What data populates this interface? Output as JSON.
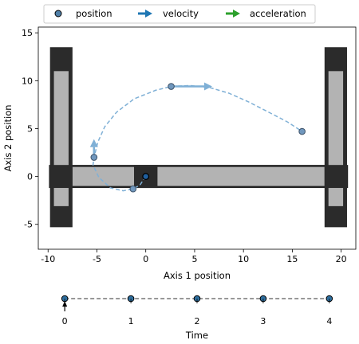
{
  "legend": {
    "items": [
      {
        "label": "position",
        "marker": "circle",
        "color": "#4f7fa8"
      },
      {
        "label": "velocity",
        "marker": "arrow",
        "color": "#1f77b4"
      },
      {
        "label": "acceleration",
        "marker": "arrow",
        "color": "#2ca02c"
      }
    ]
  },
  "chart_data": [
    {
      "type": "scatter",
      "title": "",
      "xlabel": "Axis 1 position",
      "ylabel": "Axis 2 position",
      "xlim": [
        -11,
        21.5
      ],
      "ylim": [
        -7.6,
        15.6
      ],
      "xticks": [
        -10,
        -5,
        0,
        5,
        10,
        15,
        20
      ],
      "yticks": [
        -5,
        0,
        5,
        10,
        15
      ],
      "grid": false,
      "legend_position": "top",
      "series": [
        {
          "name": "position",
          "x": [
            -5.3,
            -1.3,
            0,
            2.6,
            16
          ],
          "y": [
            2,
            -1.3,
            0,
            9.4,
            4.7
          ]
        }
      ],
      "trajectory": {
        "x": [
          0,
          -0.6,
          -1.3,
          -2.3,
          -3.6,
          -4.8,
          -5.4,
          -5.3,
          -4.9,
          -4.2,
          -3.0,
          -1.2,
          1.0,
          2.6,
          4.5,
          6.5,
          8.5,
          10.5,
          12.6,
          14.5,
          16.0
        ],
        "y": [
          0,
          -0.9,
          -1.3,
          -1.5,
          -1.2,
          -0.1,
          1.2,
          2.0,
          3.6,
          5.2,
          6.7,
          8.1,
          9.0,
          9.4,
          9.5,
          9.3,
          8.7,
          7.8,
          6.7,
          5.7,
          4.7
        ]
      },
      "velocity_arrows": [
        {
          "x": 2.6,
          "y": 9.4,
          "dx": 4.2,
          "dy": 0
        },
        {
          "x": -5.3,
          "y": 2.0,
          "dx": 0,
          "dy": 1.9
        }
      ],
      "machine": {
        "left_column": {
          "x": [
            -9.8,
            -7.5
          ],
          "y": [
            -5.3,
            13.5
          ],
          "inner": [
            -9.4,
            -7.9
          ],
          "inner_y": [
            -3.1,
            11
          ]
        },
        "right_column": {
          "x": [
            18.3,
            20.6
          ],
          "y": [
            -5.3,
            13.5
          ],
          "inner": [
            18.7,
            20.2
          ],
          "inner_y": [
            -3.1,
            11
          ]
        },
        "gantry": {
          "x": [
            -9.8,
            20.6
          ],
          "y": [
            -1.1,
            1.1
          ]
        },
        "left_block": {
          "x": [
            -9.8,
            -7.5
          ],
          "y": [
            -1.2,
            1.2
          ]
        },
        "right_block": {
          "x": [
            18.3,
            20.6
          ],
          "y": [
            -1.2,
            1.2
          ]
        },
        "carriage": {
          "x": [
            -1.2,
            1.2
          ],
          "y": [
            -1.2,
            1.2
          ]
        }
      }
    },
    {
      "type": "line",
      "title": "",
      "xlabel": "Time",
      "ylabel": "",
      "xlim": [
        -0.4,
        4.4
      ],
      "xticks": [
        0,
        1,
        2,
        3,
        4
      ],
      "points": [
        0,
        1,
        2,
        3,
        4
      ],
      "current_time": 0
    }
  ]
}
